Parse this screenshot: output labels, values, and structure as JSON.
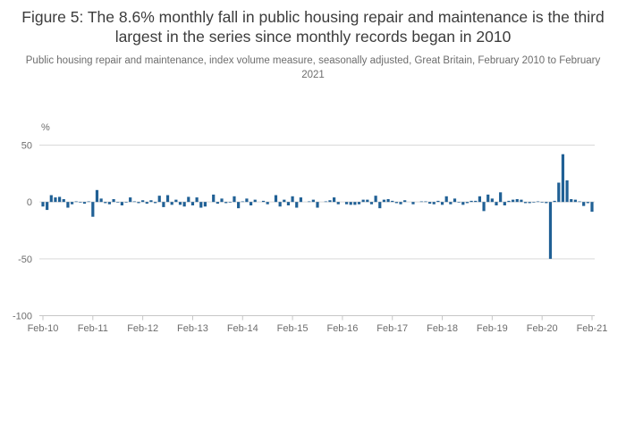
{
  "chart_data": {
    "type": "bar",
    "title": "Figure 5: The 8.6% monthly fall in public housing repair and maintenance is the third largest in the series since monthly records began in 2010",
    "subtitle": "Public housing repair and maintenance, index volume measure, seasonally adjusted, Great Britain, February 2010 to February 2021",
    "ylabel": "%",
    "y_ticks": [
      50,
      0,
      -50,
      -100
    ],
    "ylim": [
      -100,
      50
    ],
    "x_tick_labels": [
      "Feb-10",
      "Feb-11",
      "Feb-12",
      "Feb-13",
      "Feb-14",
      "Feb-15",
      "Feb-16",
      "Feb-17",
      "Feb-18",
      "Feb-19",
      "Feb-20",
      "Feb-21"
    ],
    "x_start": "Feb-10",
    "months_per_tick": 12,
    "grid": true,
    "legend": false,
    "bar_color": "#206095",
    "values": [
      -4,
      -7,
      6,
      4,
      4.5,
      2.5,
      -5,
      -2,
      0.5,
      -0.5,
      -1.5,
      0.5,
      -13,
      10.5,
      3,
      -1,
      -2,
      2.5,
      -0.5,
      -3,
      -0.5,
      4,
      0.5,
      -1,
      1.5,
      -1.5,
      1.5,
      -1,
      5.5,
      -4.5,
      6,
      -2.5,
      2,
      -2.5,
      -4,
      4.5,
      -3,
      4,
      -5,
      -4,
      0,
      6.5,
      -1.5,
      3,
      -1,
      -0.5,
      5,
      -5.5,
      0.5,
      3,
      -3,
      2,
      0,
      1,
      -2,
      0,
      6,
      -4,
      2,
      -3,
      5,
      -5,
      4,
      0,
      0.5,
      2,
      -5,
      0,
      0.5,
      1.5,
      4,
      -2,
      0,
      -2,
      -2.5,
      -2.5,
      -2,
      2,
      2,
      -2,
      5.5,
      -5.5,
      2,
      2.5,
      1,
      -1,
      -2,
      1.5,
      0,
      -2,
      0,
      0.5,
      0.5,
      -1.5,
      -2,
      1,
      -2.5,
      5,
      -2,
      3,
      -0.5,
      -2.5,
      -1,
      1,
      1,
      5,
      -8,
      6.5,
      3,
      -3,
      8.5,
      -3,
      1,
      2,
      2.5,
      2,
      -1,
      -1,
      -0.5,
      0.5,
      -0.5,
      -1,
      -50,
      1,
      17,
      42,
      19,
      2.5,
      2,
      0.5,
      -3.5,
      -1,
      -8.6
    ]
  }
}
